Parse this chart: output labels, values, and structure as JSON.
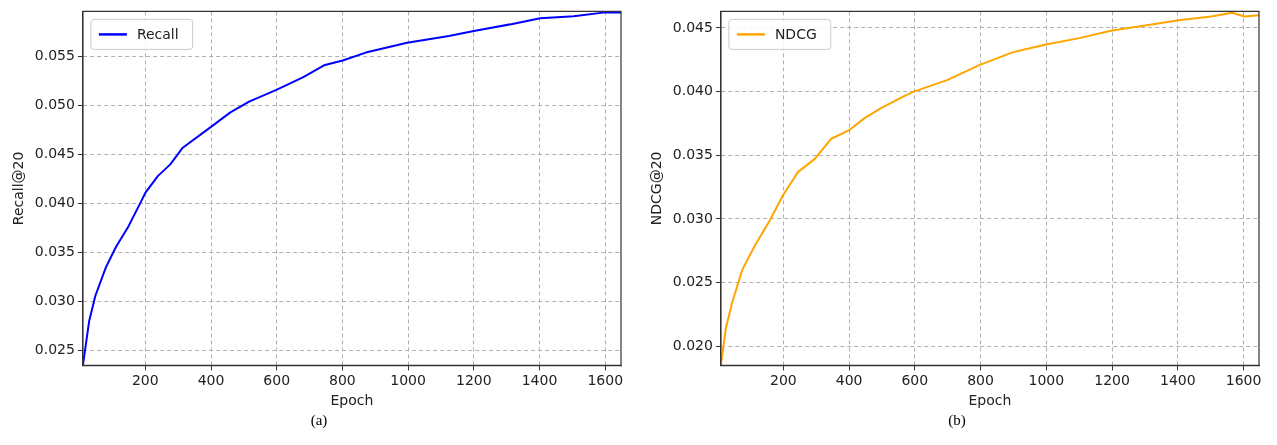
{
  "chart_data": [
    {
      "type": "line",
      "xlabel": "Epoch",
      "ylabel": "Recall@20",
      "legend": "top left",
      "grid": true,
      "marker": "none",
      "line_style": "solid",
      "annotations": [
        "(a)"
      ],
      "xlim": [
        10,
        1648
      ],
      "xticks": [
        200,
        400,
        600,
        800,
        1000,
        1200,
        1400,
        1600
      ],
      "ylim": [
        0.0235,
        0.0596
      ],
      "yticks": [
        0.025,
        {
          "value": 0.03,
          "label": "0.030"
        },
        0.035,
        {
          "value": 0.04,
          "label": "0.040"
        },
        0.045,
        {
          "value": 0.05,
          "label": "0.050"
        },
        0.055
      ],
      "series": [
        {
          "name": "Recall",
          "color": "#0000ff",
          "x": [
            10,
            29,
            48,
            80,
            111,
            149,
            187,
            200,
            238,
            276,
            314,
            399,
            459,
            516,
            599,
            681,
            744,
            801,
            871,
            997,
            1124,
            1200,
            1314,
            1402,
            1504,
            1600,
            1648
          ],
          "values": [
            0.0235,
            0.028,
            0.0306,
            0.0335,
            0.0356,
            0.0377,
            0.0402,
            0.0411,
            0.0428,
            0.044,
            0.0457,
            0.0478,
            0.0493,
            0.0504,
            0.0516,
            0.0529,
            0.0541,
            0.0546,
            0.0554,
            0.0564,
            0.0571,
            0.0576,
            0.0583,
            0.0589,
            0.0591,
            0.0595,
            0.0595
          ]
        }
      ]
    },
    {
      "type": "line",
      "xlabel": "Epoch",
      "ylabel": "NDCG@20",
      "legend": "top left",
      "grid": true,
      "marker": "none",
      "line_style": "solid",
      "annotations": [
        "(b)"
      ],
      "xlim": [
        10,
        1647
      ],
      "xticks": [
        200,
        400,
        600,
        800,
        1000,
        1200,
        1400,
        1600
      ],
      "ylim": [
        0.0185,
        0.0463
      ],
      "yticks": [
        {
          "value": 0.02,
          "label": "0.020"
        },
        0.025,
        {
          "value": 0.03,
          "label": "0.030"
        },
        0.035,
        {
          "value": 0.04,
          "label": "0.040"
        },
        0.045
      ],
      "series": [
        {
          "name": "NDCG",
          "color": "#ffa500",
          "x": [
            10,
            25,
            44,
            75,
            113,
            157,
            200,
            245,
            295,
            346,
            402,
            446,
            497,
            572,
            597,
            698,
            798,
            899,
            999,
            1100,
            1200,
            1301,
            1402,
            1502,
            1565,
            1603,
            1647
          ],
          "values": [
            0.0185,
            0.0214,
            0.0234,
            0.026,
            0.0279,
            0.0298,
            0.0319,
            0.0337,
            0.0347,
            0.0363,
            0.037,
            0.0379,
            0.0387,
            0.0397,
            0.04,
            0.0409,
            0.0421,
            0.0431,
            0.0437,
            0.0442,
            0.0448,
            0.0452,
            0.0456,
            0.0459,
            0.0462,
            0.0459,
            0.046
          ]
        }
      ]
    }
  ]
}
